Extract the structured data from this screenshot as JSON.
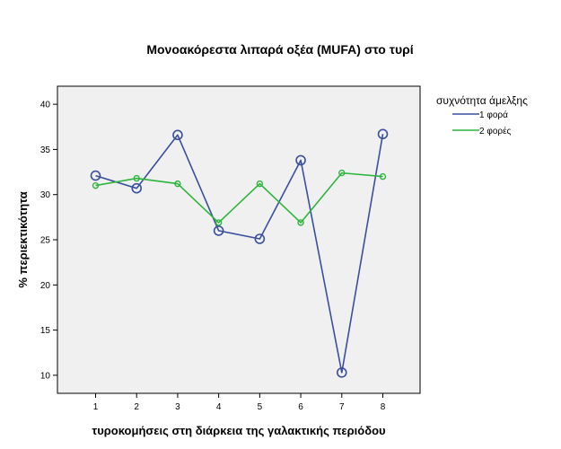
{
  "chart_data": {
    "type": "line",
    "title": "Μονοακόρεστα λιπαρά οξέα (MUFA) στο τυρί",
    "xlabel": "τυροκομήσεις στη διάρκεια της γαλακτικής περιόδου",
    "ylabel": "% περιεκτικότητα",
    "categories": [
      "1",
      "2",
      "3",
      "4",
      "5",
      "6",
      "7",
      "8"
    ],
    "ylim": [
      8,
      42
    ],
    "yticks": [
      10,
      15,
      20,
      25,
      30,
      35,
      40
    ],
    "grid": false,
    "legend": {
      "title": "συχνότητα άμελξης",
      "placement": "right"
    },
    "series": [
      {
        "name": "1 φορά",
        "color": "#3a4f9c",
        "values": [
          32.1,
          30.7,
          36.6,
          26.0,
          25.1,
          33.8,
          10.3,
          36.7
        ]
      },
      {
        "name": "2 φορές",
        "color": "#2db43c",
        "values": [
          31.0,
          31.8,
          31.2,
          26.9,
          31.2,
          26.9,
          32.4,
          32.0
        ]
      }
    ]
  }
}
